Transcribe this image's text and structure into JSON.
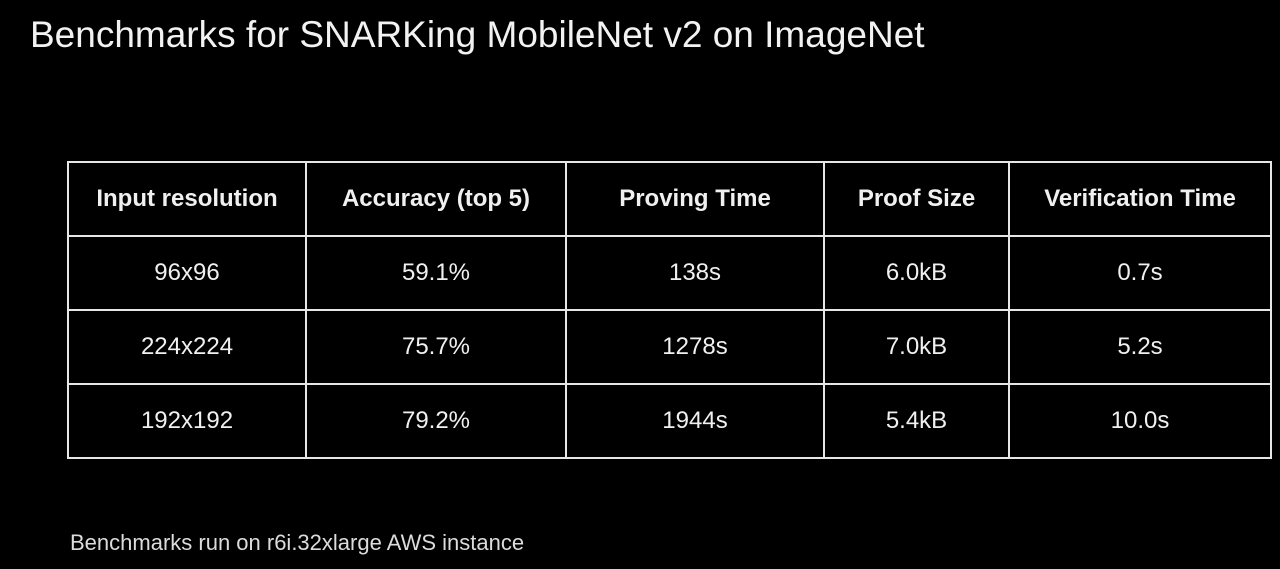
{
  "title": "Benchmarks for SNARKing MobileNet v2 on ImageNet",
  "table": {
    "header": [
      "Input resolution",
      "Accuracy (top 5)",
      "Proving Time",
      "Proof Size",
      "Verification Time"
    ],
    "rows": [
      [
        "96x96",
        "59.1%",
        "138s",
        "6.0kB",
        "0.7s"
      ],
      [
        "224x224",
        "75.7%",
        "1278s",
        "7.0kB",
        "5.2s"
      ],
      [
        "192x192",
        "79.2%",
        "1944s",
        "5.4kB",
        "10.0s"
      ]
    ]
  },
  "footnote": "Benchmarks run on r6i.32xlarge AWS instance"
}
